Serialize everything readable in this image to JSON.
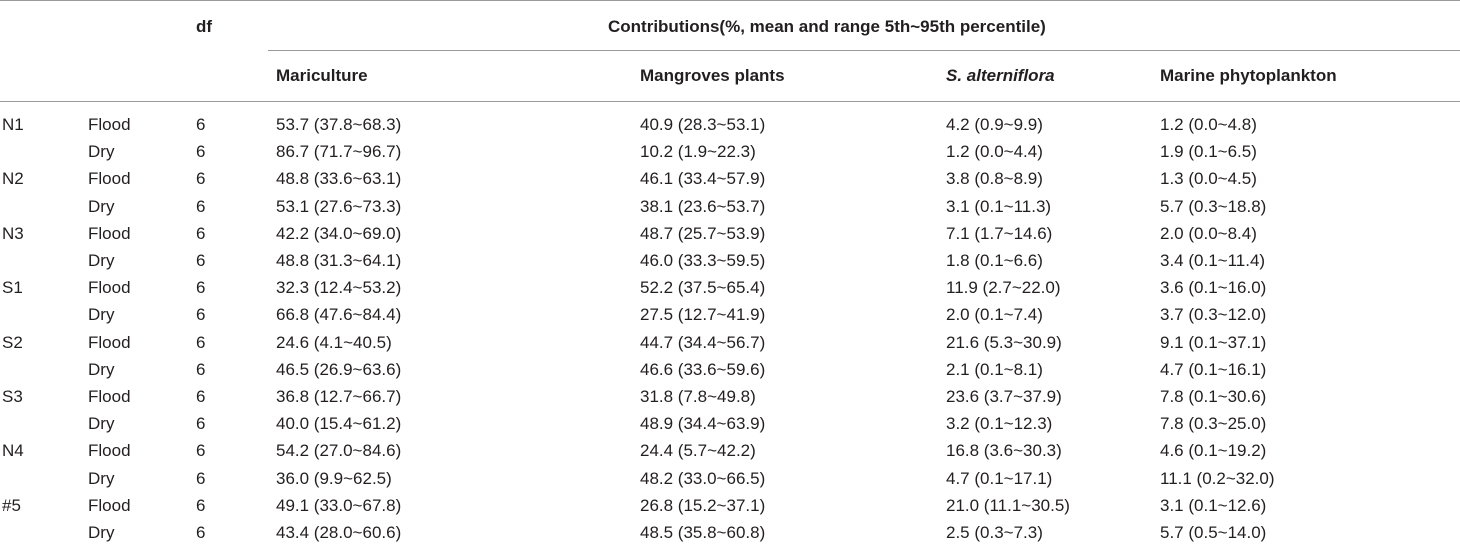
{
  "table": {
    "header": {
      "df": "df",
      "contributions": "Contributions(%, mean and range 5th~95th percentile)",
      "columns": [
        "Mariculture",
        "Mangroves plants",
        "S. alterniflora",
        "Marine phytoplankton"
      ]
    },
    "rows": [
      {
        "site": "N1",
        "season": "Flood",
        "df": "6",
        "values": [
          "53.7 (37.8~68.3)",
          "40.9 (28.3~53.1)",
          "4.2 (0.9~9.9)",
          "1.2 (0.0~4.8)"
        ]
      },
      {
        "site": "",
        "season": "Dry",
        "df": "6",
        "values": [
          "86.7 (71.7~96.7)",
          "10.2 (1.9~22.3)",
          "1.2 (0.0~4.4)",
          "1.9 (0.1~6.5)"
        ]
      },
      {
        "site": "N2",
        "season": "Flood",
        "df": "6",
        "values": [
          "48.8 (33.6~63.1)",
          "46.1 (33.4~57.9)",
          "3.8 (0.8~8.9)",
          "1.3 (0.0~4.5)"
        ]
      },
      {
        "site": "",
        "season": "Dry",
        "df": "6",
        "values": [
          "53.1 (27.6~73.3)",
          "38.1 (23.6~53.7)",
          "3.1 (0.1~11.3)",
          "5.7 (0.3~18.8)"
        ]
      },
      {
        "site": "N3",
        "season": "Flood",
        "df": "6",
        "values": [
          "42.2 (34.0~69.0)",
          "48.7 (25.7~53.9)",
          "7.1 (1.7~14.6)",
          "2.0 (0.0~8.4)"
        ]
      },
      {
        "site": "",
        "season": "Dry",
        "df": "6",
        "values": [
          "48.8 (31.3~64.1)",
          "46.0 (33.3~59.5)",
          "1.8 (0.1~6.6)",
          "3.4 (0.1~11.4)"
        ]
      },
      {
        "site": "S1",
        "season": "Flood",
        "df": "6",
        "values": [
          "32.3 (12.4~53.2)",
          "52.2 (37.5~65.4)",
          "11.9 (2.7~22.0)",
          "3.6 (0.1~16.0)"
        ]
      },
      {
        "site": "",
        "season": "Dry",
        "df": "6",
        "values": [
          "66.8 (47.6~84.4)",
          "27.5 (12.7~41.9)",
          "2.0 (0.1~7.4)",
          "3.7 (0.3~12.0)"
        ]
      },
      {
        "site": "S2",
        "season": "Flood",
        "df": "6",
        "values": [
          "24.6 (4.1~40.5)",
          "44.7 (34.4~56.7)",
          "21.6 (5.3~30.9)",
          "9.1 (0.1~37.1)"
        ]
      },
      {
        "site": "",
        "season": "Dry",
        "df": "6",
        "values": [
          "46.5 (26.9~63.6)",
          "46.6 (33.6~59.6)",
          "2.1 (0.1~8.1)",
          "4.7 (0.1~16.1)"
        ]
      },
      {
        "site": "S3",
        "season": "Flood",
        "df": "6",
        "values": [
          "36.8 (12.7~66.7)",
          "31.8 (7.8~49.8)",
          "23.6 (3.7~37.9)",
          "7.8 (0.1~30.6)"
        ]
      },
      {
        "site": "",
        "season": "Dry",
        "df": "6",
        "values": [
          "40.0 (15.4~61.2)",
          "48.9 (34.4~63.9)",
          "3.2 (0.1~12.3)",
          "7.8 (0.3~25.0)"
        ]
      },
      {
        "site": "N4",
        "season": "Flood",
        "df": "6",
        "values": [
          "54.2 (27.0~84.6)",
          "24.4 (5.7~42.2)",
          "16.8 (3.6~30.3)",
          "4.6 (0.1~19.2)"
        ]
      },
      {
        "site": "",
        "season": "Dry",
        "df": "6",
        "values": [
          "36.0 (9.9~62.5)",
          "48.2 (33.0~66.5)",
          "4.7 (0.1~17.1)",
          "11.1 (0.2~32.0)"
        ]
      },
      {
        "site": "#5",
        "season": "Flood",
        "df": "6",
        "values": [
          "49.1 (33.0~67.8)",
          "26.8 (15.2~37.1)",
          "21.0 (11.1~30.5)",
          "3.1 (0.1~12.6)"
        ]
      },
      {
        "site": "",
        "season": "Dry",
        "df": "6",
        "values": [
          "43.4 (28.0~60.6)",
          "48.5 (35.8~60.8)",
          "2.5 (0.3~7.3)",
          "5.7 (0.5~14.0)"
        ]
      }
    ]
  }
}
